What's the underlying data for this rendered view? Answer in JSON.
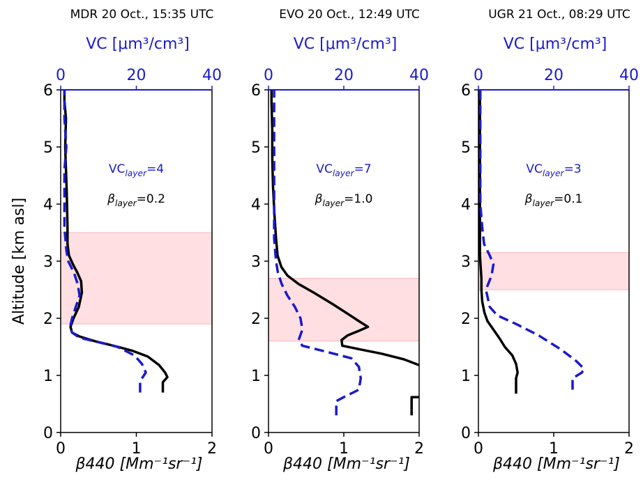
{
  "figure": {
    "ylabel": "Altitude [km asl]"
  },
  "chart_data": [
    {
      "type": "line",
      "title": "MDR 20 Oct., 15:35 UTC",
      "xlabel_bottom": "β440 [Mm⁻¹sr⁻¹]",
      "xlabel_top": "VC [μm³/cm³]",
      "ylabel": "Altitude [km asl]",
      "xlim_bottom": [
        0,
        2
      ],
      "xlim_top": [
        0,
        40
      ],
      "ylim": [
        0,
        6
      ],
      "xticks_bottom": [
        0,
        1,
        2
      ],
      "xticks_top": [
        0,
        20,
        40
      ],
      "yticks": [
        0,
        1,
        2,
        3,
        4,
        5,
        6
      ],
      "layer_band": [
        1.9,
        3.5
      ],
      "annotations": {
        "vc_layer": "VClayer=4",
        "beta_layer": "βlayer=0.2"
      },
      "series": [
        {
          "key": "beta",
          "axis": "bottom",
          "color": "#000000",
          "style": "solid",
          "points": [
            [
              1.35,
              0.7
            ],
            [
              1.35,
              0.88
            ],
            [
              1.41,
              0.97
            ],
            [
              1.38,
              1.05
            ],
            [
              1.3,
              1.18
            ],
            [
              1.15,
              1.33
            ],
            [
              0.95,
              1.43
            ],
            [
              0.7,
              1.52
            ],
            [
              0.45,
              1.6
            ],
            [
              0.25,
              1.68
            ],
            [
              0.15,
              1.75
            ],
            [
              0.13,
              1.85
            ],
            [
              0.17,
              2.0
            ],
            [
              0.24,
              2.2
            ],
            [
              0.28,
              2.45
            ],
            [
              0.27,
              2.65
            ],
            [
              0.22,
              2.8
            ],
            [
              0.16,
              2.95
            ],
            [
              0.11,
              3.1
            ],
            [
              0.09,
              3.3
            ],
            [
              0.09,
              3.6
            ],
            [
              0.08,
              4.2
            ],
            [
              0.07,
              4.6
            ],
            [
              0.06,
              5.0
            ],
            [
              0.07,
              5.5
            ],
            [
              0.05,
              5.8
            ],
            [
              0.05,
              6.0
            ]
          ]
        },
        {
          "key": "vc",
          "axis": "top",
          "color": "#1a1acc",
          "style": "dashed",
          "points": [
            [
              21.0,
              0.7
            ],
            [
              21.0,
              0.9
            ],
            [
              22.5,
              1.05
            ],
            [
              21.5,
              1.2
            ],
            [
              19.5,
              1.35
            ],
            [
              15.0,
              1.5
            ],
            [
              10.0,
              1.58
            ],
            [
              5.0,
              1.66
            ],
            [
              3.0,
              1.75
            ],
            [
              2.5,
              1.85
            ],
            [
              3.0,
              2.0
            ],
            [
              4.0,
              2.2
            ],
            [
              5.0,
              2.4
            ],
            [
              4.5,
              2.6
            ],
            [
              3.5,
              2.8
            ],
            [
              2.0,
              3.0
            ],
            [
              1.5,
              3.2
            ],
            [
              1.0,
              3.6
            ],
            [
              1.0,
              4.2
            ],
            [
              1.0,
              4.6
            ],
            [
              1.5,
              5.0
            ],
            [
              1.0,
              5.5
            ],
            [
              1.0,
              5.8
            ],
            [
              1.0,
              6.0
            ]
          ]
        }
      ]
    },
    {
      "type": "line",
      "title": "EVO 20 Oct., 12:49 UTC",
      "xlabel_bottom": "β440 [Mm⁻¹sr⁻¹]",
      "xlabel_top": "VC [μm³/cm³]",
      "ylabel": "",
      "xlim_bottom": [
        0,
        2
      ],
      "xlim_top": [
        0,
        40
      ],
      "ylim": [
        0,
        6
      ],
      "xticks_bottom": [
        0,
        1,
        2
      ],
      "xticks_top": [
        0,
        20,
        40
      ],
      "yticks": [
        0,
        1,
        2,
        3,
        4,
        5,
        6
      ],
      "layer_band": [
        1.6,
        2.7
      ],
      "annotations": {
        "vc_layer": "VClayer=7",
        "beta_layer": "βlayer=1.0"
      },
      "series": [
        {
          "key": "beta",
          "axis": "bottom",
          "color": "#000000",
          "style": "solid",
          "points": [
            [
              2.0,
              1.18
            ],
            [
              1.8,
              1.28
            ],
            [
              1.5,
              1.38
            ],
            [
              1.2,
              1.46
            ],
            [
              0.98,
              1.52
            ],
            [
              0.97,
              1.62
            ],
            [
              1.05,
              1.7
            ],
            [
              1.2,
              1.78
            ],
            [
              1.32,
              1.85
            ],
            [
              1.2,
              1.95
            ],
            [
              1.05,
              2.08
            ],
            [
              0.85,
              2.25
            ],
            [
              0.6,
              2.45
            ],
            [
              0.4,
              2.6
            ],
            [
              0.25,
              2.75
            ],
            [
              0.17,
              2.9
            ],
            [
              0.12,
              3.1
            ],
            [
              0.1,
              3.4
            ],
            [
              0.08,
              3.8
            ],
            [
              0.06,
              4.3
            ],
            [
              0.05,
              4.8
            ],
            [
              0.05,
              5.3
            ],
            [
              0.04,
              5.8
            ],
            [
              0.04,
              6.0
            ]
          ]
        },
        {
          "key": "bottom_seg",
          "axis": "bottom",
          "color": "#000000",
          "style": "solid",
          "points": [
            [
              1.9,
              0.3
            ],
            [
              1.9,
              0.62
            ],
            [
              2.0,
              0.62
            ]
          ]
        },
        {
          "key": "vc",
          "axis": "top",
          "color": "#1a1acc",
          "style": "dashed",
          "points": [
            [
              18.0,
              0.3
            ],
            [
              18.0,
              0.55
            ],
            [
              20.0,
              0.62
            ],
            [
              24.0,
              0.75
            ],
            [
              24.5,
              0.95
            ],
            [
              24.0,
              1.15
            ],
            [
              22.0,
              1.3
            ],
            [
              15.0,
              1.42
            ],
            [
              9.0,
              1.52
            ],
            [
              8.0,
              1.62
            ],
            [
              9.0,
              1.8
            ],
            [
              8.5,
              2.0
            ],
            [
              7.0,
              2.2
            ],
            [
              5.0,
              2.4
            ],
            [
              3.5,
              2.6
            ],
            [
              2.5,
              2.8
            ],
            [
              2.0,
              3.0
            ],
            [
              1.5,
              3.4
            ],
            [
              1.5,
              3.8
            ],
            [
              1.5,
              4.3
            ],
            [
              1.5,
              4.8
            ],
            [
              1.5,
              5.3
            ],
            [
              1.5,
              5.8
            ],
            [
              1.5,
              6.0
            ]
          ]
        }
      ]
    },
    {
      "type": "line",
      "title": "UGR 21 Oct., 08:29 UTC",
      "xlabel_bottom": "β440 [Mm⁻¹sr⁻¹]",
      "xlabel_top": "VC [μm³/cm³]",
      "ylabel": "",
      "xlim_bottom": [
        0,
        2
      ],
      "xlim_top": [
        0,
        40
      ],
      "ylim": [
        0,
        6
      ],
      "xticks_bottom": [
        0,
        1,
        2
      ],
      "xticks_top": [
        0,
        20,
        40
      ],
      "yticks": [
        0,
        1,
        2,
        3,
        4,
        5,
        6
      ],
      "layer_band": [
        2.5,
        3.15
      ],
      "annotations": {
        "vc_layer": "VClayer=3",
        "beta_layer": "βlayer=0.1"
      },
      "series": [
        {
          "key": "beta",
          "axis": "bottom",
          "color": "#000000",
          "style": "solid",
          "points": [
            [
              0.5,
              0.68
            ],
            [
              0.5,
              0.95
            ],
            [
              0.52,
              1.05
            ],
            [
              0.5,
              1.2
            ],
            [
              0.45,
              1.35
            ],
            [
              0.35,
              1.5
            ],
            [
              0.28,
              1.65
            ],
            [
              0.2,
              1.8
            ],
            [
              0.12,
              1.95
            ],
            [
              0.08,
              2.1
            ],
            [
              0.05,
              2.3
            ],
            [
              0.04,
              2.5
            ],
            [
              0.04,
              2.7
            ],
            [
              0.03,
              2.9
            ],
            [
              0.02,
              3.1
            ],
            [
              0.02,
              3.4
            ],
            [
              0.02,
              4.0
            ],
            [
              0.02,
              4.6
            ],
            [
              0.02,
              5.2
            ],
            [
              0.02,
              5.8
            ],
            [
              0.02,
              6.0
            ]
          ]
        },
        {
          "key": "vc",
          "axis": "top",
          "color": "#1a1acc",
          "style": "dashed",
          "points": [
            [
              25.0,
              0.75
            ],
            [
              25.0,
              0.95
            ],
            [
              27.5,
              1.05
            ],
            [
              28.0,
              1.12
            ],
            [
              26.0,
              1.25
            ],
            [
              22.0,
              1.45
            ],
            [
              16.0,
              1.7
            ],
            [
              10.0,
              1.9
            ],
            [
              5.0,
              2.05
            ],
            [
              3.0,
              2.2
            ],
            [
              2.0,
              2.5
            ],
            [
              3.5,
              2.75
            ],
            [
              4.0,
              2.95
            ],
            [
              3.0,
              3.1
            ],
            [
              1.5,
              3.3
            ],
            [
              1.0,
              3.6
            ],
            [
              0.5,
              4.0
            ],
            [
              0.5,
              4.6
            ],
            [
              0.5,
              5.2
            ],
            [
              0.5,
              5.8
            ],
            [
              0.5,
              6.0
            ]
          ]
        }
      ]
    }
  ]
}
